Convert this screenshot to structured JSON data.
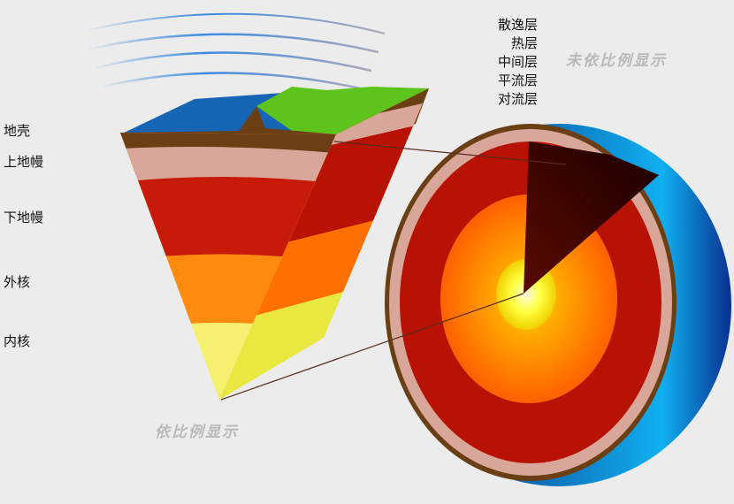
{
  "atmosphere_labels": [
    "散逸层",
    "热层",
    "中间层",
    "平流层",
    "对流层"
  ],
  "interior_labels": [
    "地壳",
    "上地幔",
    "下地幔",
    "外核",
    "内核"
  ],
  "notes": {
    "not_to_scale": "未依比例显示",
    "to_scale": "依比例显示"
  },
  "colors": {
    "crust": "#6b3f14",
    "upper_mantle": "#d9a79a",
    "lower_mantle": "#b01a05",
    "outer_core": "#ff7a00",
    "inner_core": "#f2f020",
    "ocean": "#1560b0",
    "land": "#5cc41c",
    "leader_blue": "#2a6fc0",
    "leader_red": "#e02020"
  }
}
